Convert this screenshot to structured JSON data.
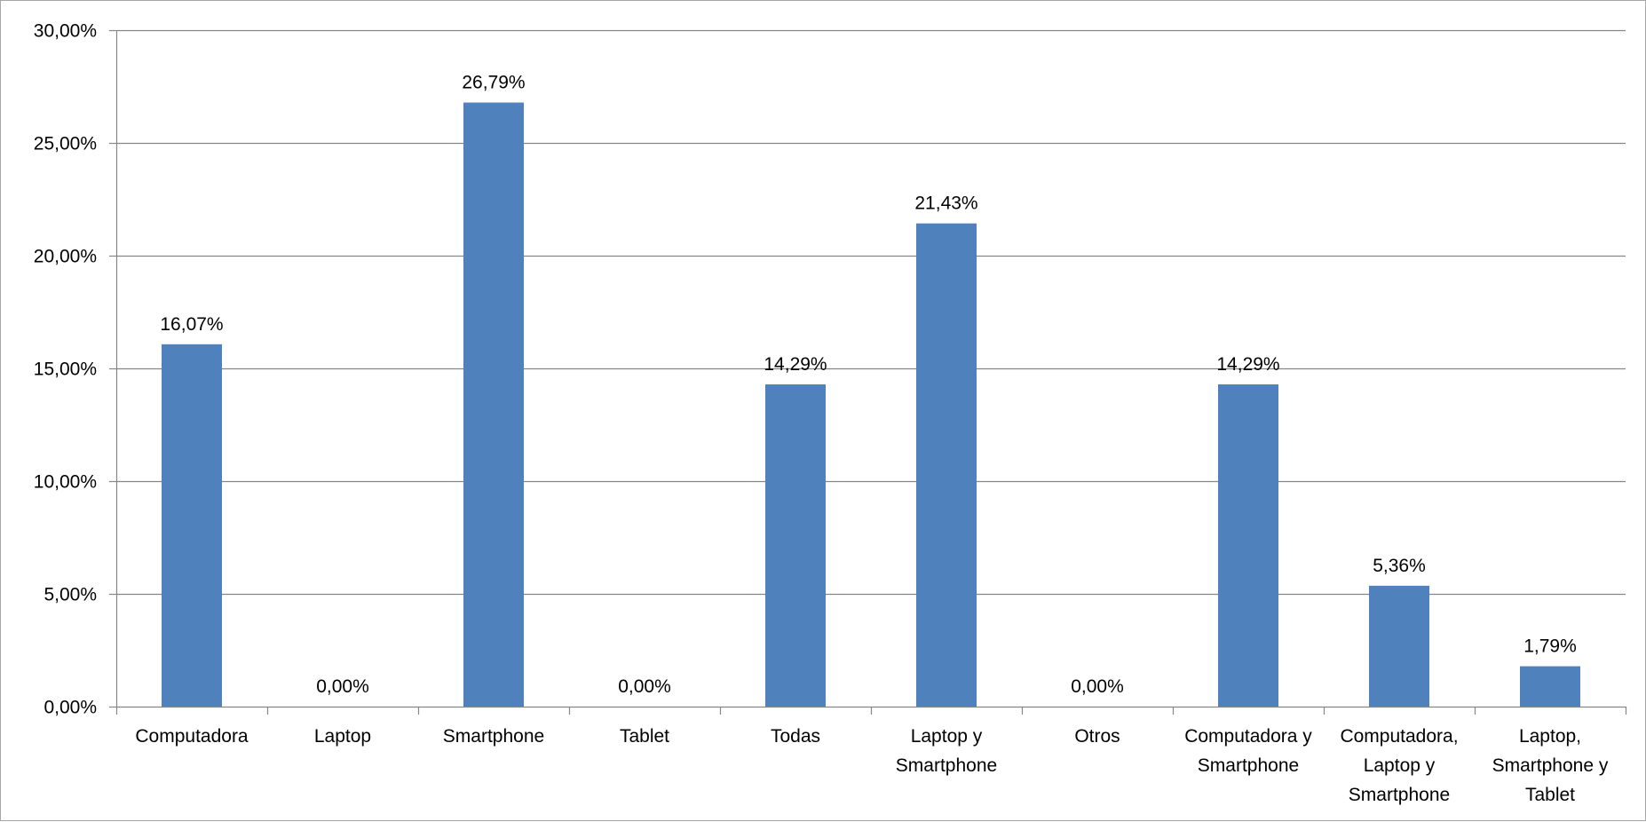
{
  "chart_data": {
    "type": "bar",
    "categories": [
      [
        "Computadora"
      ],
      [
        "Laptop"
      ],
      [
        "Smartphone"
      ],
      [
        "Tablet"
      ],
      [
        "Todas"
      ],
      [
        "Laptop y",
        "Smartphone"
      ],
      [
        "Otros"
      ],
      [
        "Computadora y",
        "Smartphone"
      ],
      [
        "Computadora,",
        "Laptop y",
        "Smartphone"
      ],
      [
        "Laptop,",
        "Smartphone y",
        "Tablet"
      ]
    ],
    "values": [
      16.07,
      0.0,
      26.79,
      0.0,
      14.29,
      21.43,
      0.0,
      14.29,
      5.36,
      1.79
    ],
    "data_labels": [
      "16,07%",
      "0,00%",
      "26,79%",
      "0,00%",
      "14,29%",
      "21,43%",
      "0,00%",
      "14,29%",
      "5,36%",
      "1,79%"
    ],
    "ylim": [
      0,
      30
    ],
    "yticks": [
      0,
      5,
      10,
      15,
      20,
      25,
      30
    ],
    "ytick_labels": [
      "0,00%",
      "5,00%",
      "10,00%",
      "15,00%",
      "20,00%",
      "25,00%",
      "30,00%"
    ],
    "title": "",
    "xlabel": "",
    "ylabel": "",
    "grid": true,
    "legend": "none",
    "colors": {
      "bar": "#4f81bd",
      "grid": "#868686",
      "axis": "#868686",
      "text": "#000000"
    }
  }
}
